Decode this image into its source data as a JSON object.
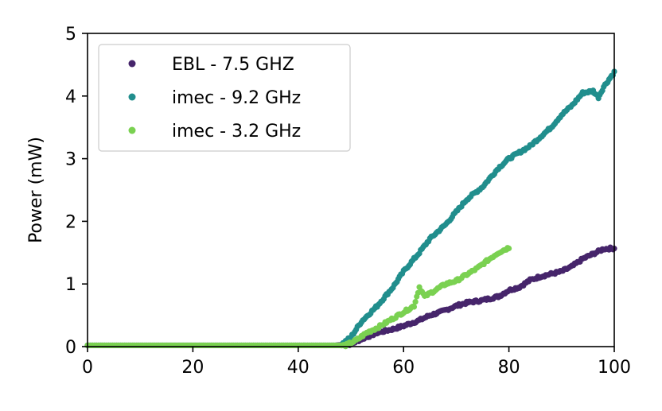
{
  "chart_data": {
    "type": "scatter",
    "title": "",
    "xlabel": "",
    "ylabel": "Power (mW)",
    "xlim": [
      0,
      100
    ],
    "ylim": [
      0,
      5
    ],
    "xticks": [
      "0",
      "20",
      "40",
      "60",
      "80",
      "100"
    ],
    "yticks": [
      "0",
      "1",
      "2",
      "3",
      "4",
      "5"
    ],
    "grid": false,
    "legend_position": "top-left",
    "series": [
      {
        "name": "EBL - 7.5 GHZ",
        "color": "#46256b",
        "x_start": 0,
        "x_end": 100,
        "points": [
          [
            0,
            0.02
          ],
          [
            47,
            0.02
          ],
          [
            50,
            0.04
          ],
          [
            52,
            0.12
          ],
          [
            55,
            0.22
          ],
          [
            58,
            0.28
          ],
          [
            60,
            0.33
          ],
          [
            63,
            0.42
          ],
          [
            65,
            0.5
          ],
          [
            67,
            0.55
          ],
          [
            70,
            0.65
          ],
          [
            72,
            0.7
          ],
          [
            75,
            0.74
          ],
          [
            78,
            0.8
          ],
          [
            80,
            0.9
          ],
          [
            82,
            0.95
          ],
          [
            84,
            1.06
          ],
          [
            86,
            1.12
          ],
          [
            88,
            1.16
          ],
          [
            90,
            1.2
          ],
          [
            92,
            1.28
          ],
          [
            94,
            1.4
          ],
          [
            96,
            1.48
          ],
          [
            98,
            1.56
          ],
          [
            100,
            1.57
          ]
        ]
      },
      {
        "name": "imec - 9.2 GHz",
        "color": "#218e8d",
        "x_start": 0,
        "x_end": 100,
        "points": [
          [
            0,
            0.02
          ],
          [
            48,
            0.02
          ],
          [
            50,
            0.15
          ],
          [
            52,
            0.4
          ],
          [
            55,
            0.65
          ],
          [
            58,
            0.95
          ],
          [
            60,
            1.2
          ],
          [
            63,
            1.5
          ],
          [
            65,
            1.72
          ],
          [
            68,
            1.95
          ],
          [
            70,
            2.15
          ],
          [
            72,
            2.35
          ],
          [
            75,
            2.55
          ],
          [
            78,
            2.85
          ],
          [
            80,
            3.0
          ],
          [
            82,
            3.1
          ],
          [
            84,
            3.2
          ],
          [
            86,
            3.35
          ],
          [
            88,
            3.5
          ],
          [
            90,
            3.7
          ],
          [
            92,
            3.85
          ],
          [
            94,
            4.05
          ],
          [
            96,
            4.08
          ],
          [
            97,
            3.98
          ],
          [
            98,
            4.15
          ],
          [
            100,
            4.38
          ]
        ]
      },
      {
        "name": "imec - 3.2 GHz",
        "color": "#7ad151",
        "x_start": 0,
        "x_end": 80,
        "points": [
          [
            0,
            0.02
          ],
          [
            49,
            0.02
          ],
          [
            51,
            0.1
          ],
          [
            53,
            0.22
          ],
          [
            55,
            0.3
          ],
          [
            58,
            0.45
          ],
          [
            60,
            0.55
          ],
          [
            62,
            0.65
          ],
          [
            63,
            0.95
          ],
          [
            64,
            0.8
          ],
          [
            66,
            0.9
          ],
          [
            68,
            1.0
          ],
          [
            70,
            1.05
          ],
          [
            72,
            1.15
          ],
          [
            74,
            1.25
          ],
          [
            76,
            1.38
          ],
          [
            78,
            1.5
          ],
          [
            80,
            1.58
          ]
        ]
      }
    ]
  }
}
